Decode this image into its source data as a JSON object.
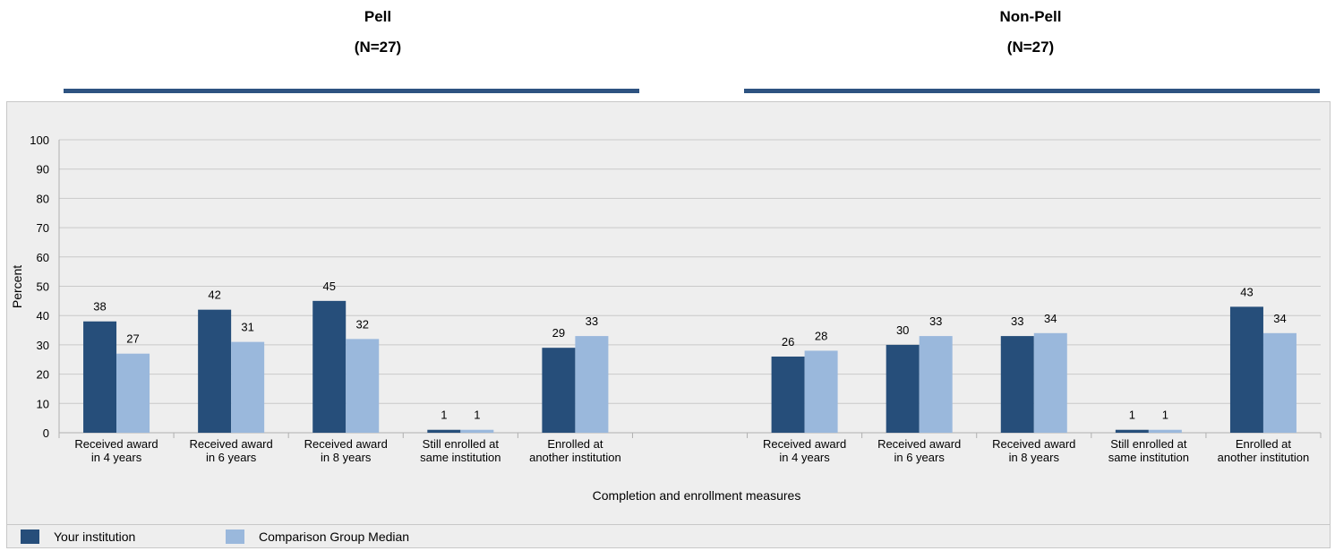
{
  "group_titles": [
    {
      "name": "Pell",
      "n": "(N=27)"
    },
    {
      "name": "Non-Pell",
      "n": "(N=27)"
    }
  ],
  "legend": {
    "your_institution": "Your institution",
    "comparison": "Comparison Group Median"
  },
  "colors": {
    "your_institution": "#264e7a",
    "comparison": "#9ab8dc",
    "rule": "#2e5381"
  },
  "chart_data": {
    "type": "bar",
    "xlabel": "Completion and enrollment measures",
    "ylabel": "Percent",
    "ylim": [
      0,
      100
    ],
    "yticks": [
      0,
      10,
      20,
      30,
      40,
      50,
      60,
      70,
      80,
      90,
      100
    ],
    "grid": true,
    "legend_position": "bottom",
    "categories": [
      [
        "Received award",
        "in 4 years"
      ],
      [
        "Received award",
        "in 6 years"
      ],
      [
        "Received award",
        "in 8 years"
      ],
      [
        "Still enrolled at",
        "same institution"
      ],
      [
        "Enrolled at",
        "another institution"
      ],
      [
        "",
        ""
      ],
      [
        "Received award",
        "in 4 years"
      ],
      [
        "Received award",
        "in 6 years"
      ],
      [
        "Received award",
        "in 8 years"
      ],
      [
        "Still enrolled at",
        "same institution"
      ],
      [
        "Enrolled at",
        "another institution"
      ]
    ],
    "series": [
      {
        "name": "Your institution",
        "values": [
          38,
          42,
          45,
          1,
          29,
          null,
          26,
          30,
          33,
          1,
          43
        ]
      },
      {
        "name": "Comparison Group Median",
        "values": [
          27,
          31,
          32,
          1,
          33,
          null,
          28,
          33,
          34,
          1,
          34
        ]
      }
    ]
  }
}
